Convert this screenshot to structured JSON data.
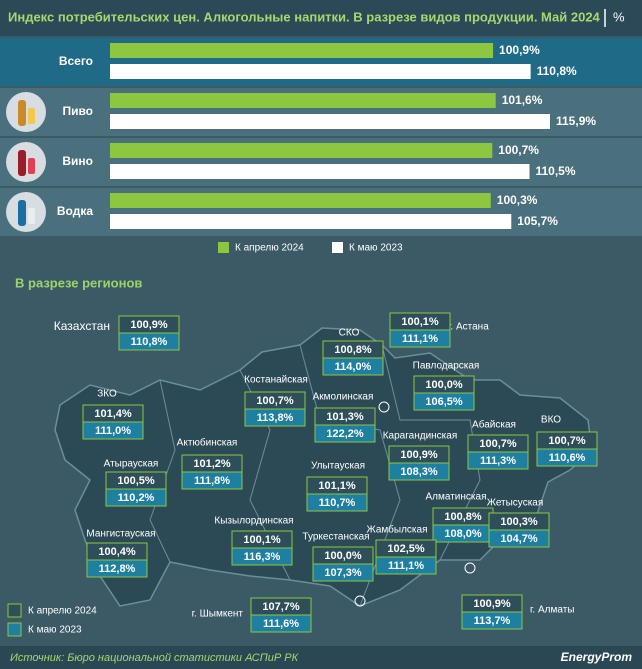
{
  "chart_data": {
    "type": "hbar",
    "title": "Индекс потребительских цен. Алкогольные напитки. В разрезе видов продукции. Май 2024",
    "unit": "%",
    "categories": [
      "Всего",
      "Пиво",
      "Вино",
      "Водка"
    ],
    "series": [
      {
        "name": "К апрелю 2024",
        "color": "#8dc63f",
        "values": [
          100.9,
          101.6,
          100.7,
          100.3
        ],
        "value_labels": [
          "100,9%",
          "101,6%",
          "100,7%",
          "100,3%"
        ]
      },
      {
        "name": "К маю 2023",
        "color": "#ffffff",
        "values": [
          110.8,
          115.9,
          110.5,
          105.7
        ],
        "value_labels": [
          "110,8%",
          "115,9%",
          "110,5%",
          "105,7%"
        ]
      }
    ]
  },
  "map": {
    "title": "В разрезе регионов",
    "regions": [
      {
        "name": "Казахстан",
        "april": "100,9%",
        "may": "110,8%"
      },
      {
        "name": "СКО",
        "april": "100,8%",
        "may": "114,0%"
      },
      {
        "name": "г. Астана",
        "april": "100,1%",
        "may": "111,1%"
      },
      {
        "name": "Павлодарская",
        "april": "100,0%",
        "may": "106,5%"
      },
      {
        "name": "Костанайская",
        "april": "100,7%",
        "may": "113,8%"
      },
      {
        "name": "Акмолинская",
        "april": "101,3%",
        "may": "122,2%"
      },
      {
        "name": "ЗКО",
        "april": "101,4%",
        "may": "111,0%"
      },
      {
        "name": "ВКО",
        "april": "100,7%",
        "may": "110,6%"
      },
      {
        "name": "Абайская",
        "april": "100,7%",
        "may": "111,3%"
      },
      {
        "name": "Карагандинская",
        "april": "100,9%",
        "may": "108,3%"
      },
      {
        "name": "Актюбинская",
        "april": "101,2%",
        "may": "111,8%"
      },
      {
        "name": "Атырауская",
        "april": "100,5%",
        "may": "110,2%"
      },
      {
        "name": "Улытауская",
        "april": "101,1%",
        "may": "110,7%"
      },
      {
        "name": "Алматинская",
        "april": "100,8%",
        "may": "108,0%"
      },
      {
        "name": "Жетысуская",
        "april": "100,3%",
        "may": "104,7%"
      },
      {
        "name": "Кызылординская",
        "april": "100,1%",
        "may": "116,3%"
      },
      {
        "name": "Мангистауская",
        "april": "100,4%",
        "may": "112,8%"
      },
      {
        "name": "Жамбылская",
        "april": "102,5%",
        "may": "111,1%"
      },
      {
        "name": "Туркестанская",
        "april": "100,0%",
        "may": "107,3%"
      },
      {
        "name": "г. Шымкент",
        "april": "107,7%",
        "may": "111,6%"
      },
      {
        "name": "г. Алматы",
        "april": "100,9%",
        "may": "113,7%"
      }
    ]
  },
  "footer": {
    "source": "Источник: Бюро национальной статистики АСПиР РК",
    "logo": "EnergyProm"
  }
}
